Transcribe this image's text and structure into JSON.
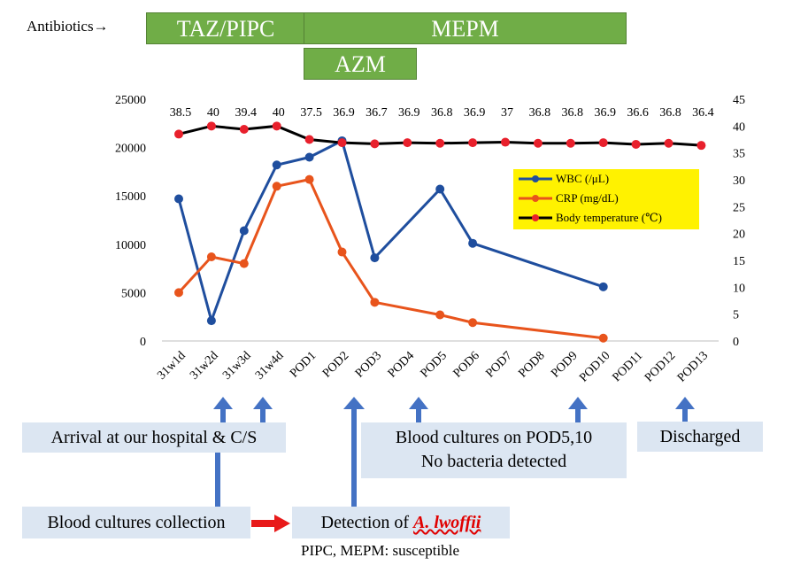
{
  "antibiotics": {
    "label": "Antibiotics→",
    "bars": [
      {
        "name": "TAZ/PIPC",
        "color": "#70AD47"
      },
      {
        "name": "MEPM",
        "color": "#70AD47"
      },
      {
        "name": "AZM",
        "color": "#70AD47"
      }
    ]
  },
  "chart_data": {
    "type": "line",
    "categories": [
      "31w1d",
      "31w2d",
      "31w3d",
      "31w4d",
      "POD1",
      "POD2",
      "POD3",
      "POD4",
      "POD5",
      "POD6",
      "POD7",
      "POD8",
      "POD9",
      "POD10",
      "POD11",
      "POD12",
      "POD13"
    ],
    "y_left": {
      "range": [
        0,
        25000
      ],
      "ticks": [
        "0",
        "5000",
        "10000",
        "15000",
        "20000",
        "25000"
      ]
    },
    "y_right": {
      "range": [
        0,
        45
      ],
      "ticks": [
        "0",
        "5",
        "10",
        "15",
        "20",
        "25",
        "30",
        "35",
        "40",
        "45"
      ]
    },
    "series": [
      {
        "name": "WBC (/μL)",
        "axis": "left",
        "color": "#1F4E9E",
        "values": [
          14700,
          2100,
          11400,
          18200,
          19000,
          20700,
          8600,
          null,
          15700,
          10100,
          null,
          null,
          null,
          5600,
          null,
          null,
          null
        ]
      },
      {
        "name": "CRP (mg/dL)",
        "axis": "left",
        "color": "#E8541C",
        "values": [
          5000,
          8700,
          8000,
          16000,
          16700,
          9200,
          4000,
          null,
          2700,
          1900,
          null,
          null,
          null,
          300,
          null,
          null,
          null
        ]
      },
      {
        "name": "Body temperature (℃)",
        "axis": "right",
        "color": "#000000",
        "marker_color": "#E8202C",
        "values": [
          38.5,
          40,
          39.4,
          40,
          37.5,
          36.9,
          36.7,
          36.9,
          36.8,
          36.9,
          37,
          36.8,
          36.8,
          36.9,
          36.6,
          36.8,
          36.4
        ],
        "labels": [
          "38.5",
          "40",
          "39.4",
          "40",
          "37.5",
          "36.9",
          "36.7",
          "36.9",
          "36.8",
          "36.9",
          "37",
          "36.8",
          "36.8",
          "36.9",
          "36.6",
          "36.8",
          "36.4"
        ]
      }
    ],
    "legend": [
      "WBC (/μL)",
      "CRP (mg/dL)",
      "Body temperature (℃)"
    ]
  },
  "annotations": {
    "arrival": "Arrival at our hospital & C/S",
    "blood_cultures_pod": "Blood cultures  on POD5,10",
    "no_bacteria": "No bacteria detected",
    "discharged": "Discharged",
    "blood_collection": "Blood cultures collection",
    "detection_prefix": "Detection of ",
    "detection_organism": "A. lwoffii",
    "susceptible": "PIPC, MEPM: susceptible"
  }
}
